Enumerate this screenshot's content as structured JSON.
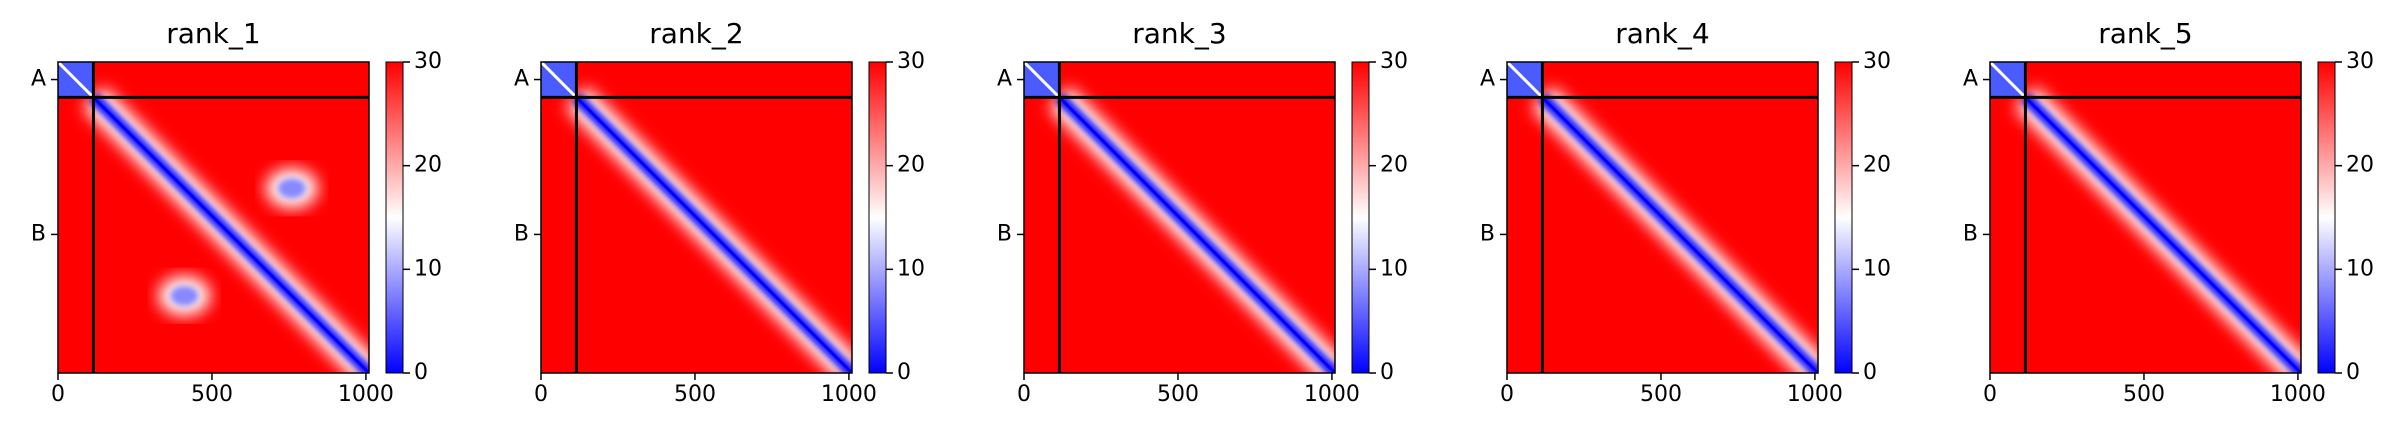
{
  "chart_data": [
    {
      "type": "heatmap",
      "title": "rank_1",
      "xlim": [
        0,
        1010
      ],
      "xticks": [
        0,
        500,
        1000
      ],
      "ylim": [
        1010,
        0
      ],
      "yticks": [
        {
          "value": 57,
          "label": "A"
        },
        {
          "value": 560,
          "label": "B"
        }
      ],
      "chain_breaks": [
        115
      ],
      "clim": [
        0,
        30
      ],
      "cticks": [
        0,
        10,
        20,
        30
      ],
      "colormap": [
        "#0000ff",
        "#ffffff",
        "#ff0000"
      ]
    },
    {
      "type": "heatmap",
      "title": "rank_2",
      "xlim": [
        0,
        1010
      ],
      "xticks": [
        0,
        500,
        1000
      ],
      "ylim": [
        1010,
        0
      ],
      "yticks": [
        {
          "value": 57,
          "label": "A"
        },
        {
          "value": 560,
          "label": "B"
        }
      ],
      "chain_breaks": [
        115
      ],
      "clim": [
        0,
        30
      ],
      "cticks": [
        0,
        10,
        20,
        30
      ],
      "colormap": [
        "#0000ff",
        "#ffffff",
        "#ff0000"
      ]
    },
    {
      "type": "heatmap",
      "title": "rank_3",
      "xlim": [
        0,
        1010
      ],
      "xticks": [
        0,
        500,
        1000
      ],
      "ylim": [
        1010,
        0
      ],
      "yticks": [
        {
          "value": 57,
          "label": "A"
        },
        {
          "value": 560,
          "label": "B"
        }
      ],
      "chain_breaks": [
        115
      ],
      "clim": [
        0,
        30
      ],
      "cticks": [
        0,
        10,
        20,
        30
      ],
      "colormap": [
        "#0000ff",
        "#ffffff",
        "#ff0000"
      ]
    },
    {
      "type": "heatmap",
      "title": "rank_4",
      "xlim": [
        0,
        1010
      ],
      "xticks": [
        0,
        500,
        1000
      ],
      "ylim": [
        1010,
        0
      ],
      "yticks": [
        {
          "value": 57,
          "label": "A"
        },
        {
          "value": 560,
          "label": "B"
        }
      ],
      "chain_breaks": [
        115
      ],
      "clim": [
        0,
        30
      ],
      "cticks": [
        0,
        10,
        20,
        30
      ],
      "colormap": [
        "#0000ff",
        "#ffffff",
        "#ff0000"
      ]
    },
    {
      "type": "heatmap",
      "title": "rank_5",
      "xlim": [
        0,
        1010
      ],
      "xticks": [
        0,
        500,
        1000
      ],
      "ylim": [
        1010,
        0
      ],
      "yticks": [
        {
          "value": 57,
          "label": "A"
        },
        {
          "value": 560,
          "label": "B"
        }
      ],
      "chain_breaks": [
        115
      ],
      "clim": [
        0,
        30
      ],
      "cticks": [
        0,
        10,
        20,
        30
      ],
      "colormap": [
        "#0000ff",
        "#ffffff",
        "#ff0000"
      ]
    }
  ]
}
